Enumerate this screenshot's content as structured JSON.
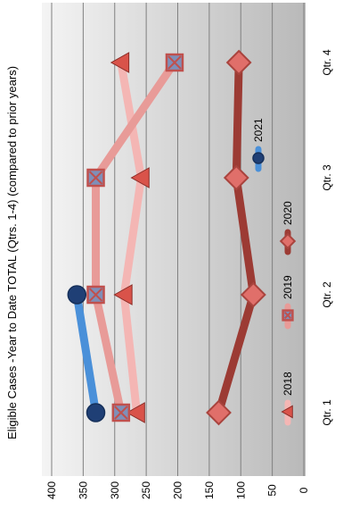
{
  "chart_data": {
    "type": "line",
    "title": "Eligible Cases -Year to Date TOTAL (Qtrs. 1-4) (compared to prior years)",
    "categories": [
      "Qtr. 1",
      "Qtr. 2",
      "Qtr. 3",
      "Qtr. 4"
    ],
    "ylim": [
      0,
      400
    ],
    "yticks": [
      0,
      50,
      100,
      150,
      200,
      250,
      300,
      350,
      400
    ],
    "grid": true,
    "legend_position": "bottom",
    "series": [
      {
        "name": "2018",
        "values": [
          265,
          285,
          258,
          290
        ],
        "color": "#f4b6b4",
        "marker": "triangle",
        "marker_color": "#d9534a"
      },
      {
        "name": "2019",
        "values": [
          290,
          330,
          330,
          205
        ],
        "color": "#e89b98",
        "marker": "box-x",
        "marker_color": "#d9534a"
      },
      {
        "name": "2020",
        "values": [
          135,
          80,
          107,
          103
        ],
        "color": "#9c3b34",
        "marker": "diamond",
        "marker_color": "#e06f6a"
      },
      {
        "name": "2021",
        "values": [
          330,
          360,
          null,
          null
        ],
        "color": "#4a90d9",
        "marker": "circle",
        "marker_color": "#1f3f75"
      }
    ]
  }
}
